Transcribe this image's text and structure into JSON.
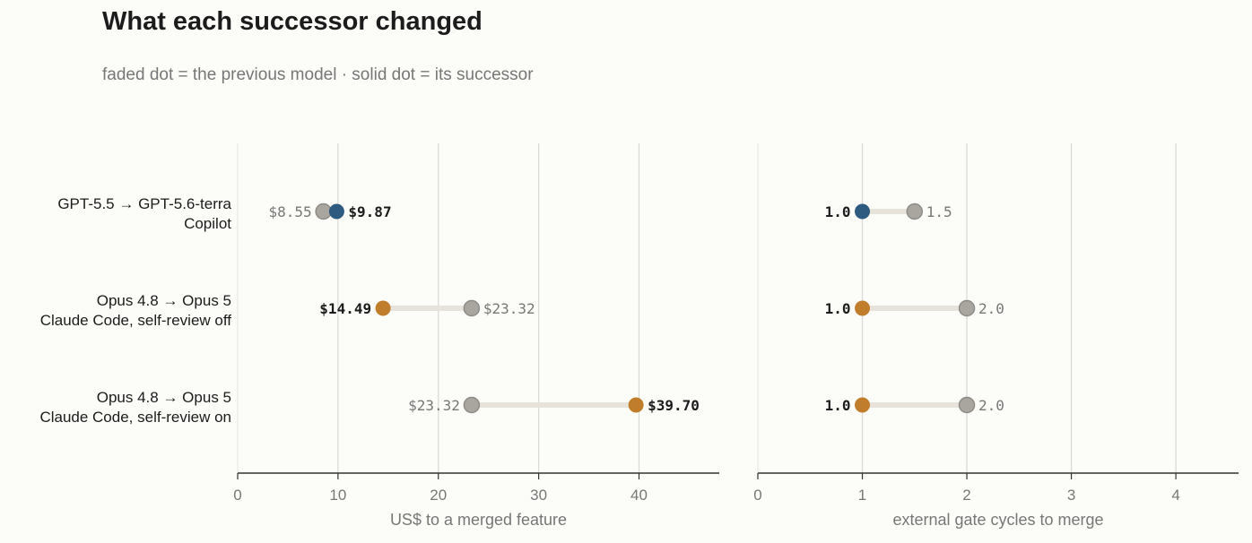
{
  "title": "What each successor changed",
  "subtitle": "faded dot = the previous model · solid dot = its successor",
  "chart_data": {
    "type": "dumbbell",
    "rows": [
      {
        "line1": "GPT-5.5 → GPT-5.6-terra",
        "line2": "Copilot",
        "color": "#2e5a80"
      },
      {
        "line1": "Opus 4.8 → Opus 5",
        "line2": "Claude Code, self-review off",
        "color": "#c07e2c"
      },
      {
        "line1": "Opus 4.8 → Opus 5",
        "line2": "Claude Code, self-review on",
        "color": "#c07e2c"
      }
    ],
    "faded_color": "#a9a6a0",
    "connector_color": "#e7e2da",
    "panels": [
      {
        "xlabel": "US$ to a merged feature",
        "xlim": [
          0,
          48
        ],
        "ticks": [
          "0",
          "10",
          "20",
          "30",
          "40"
        ],
        "values": [
          {
            "previous": 8.55,
            "successor": 9.87,
            "previous_label": "$8.55",
            "successor_label": "$9.87"
          },
          {
            "previous": 23.32,
            "successor": 14.49,
            "previous_label": "$23.32",
            "successor_label": "$14.49"
          },
          {
            "previous": 23.32,
            "successor": 39.7,
            "previous_label": "$23.32",
            "successor_label": "$39.70"
          }
        ]
      },
      {
        "xlabel": "external gate cycles to merge",
        "xlim": [
          0,
          4.6
        ],
        "ticks": [
          "0",
          "1",
          "2",
          "3",
          "4"
        ],
        "values": [
          {
            "previous": 1.5,
            "successor": 1.0,
            "previous_label": "1.5",
            "successor_label": "1.0"
          },
          {
            "previous": 2.0,
            "successor": 1.0,
            "previous_label": "2.0",
            "successor_label": "1.0"
          },
          {
            "previous": 2.0,
            "successor": 1.0,
            "previous_label": "2.0",
            "successor_label": "1.0"
          }
        ]
      }
    ]
  }
}
